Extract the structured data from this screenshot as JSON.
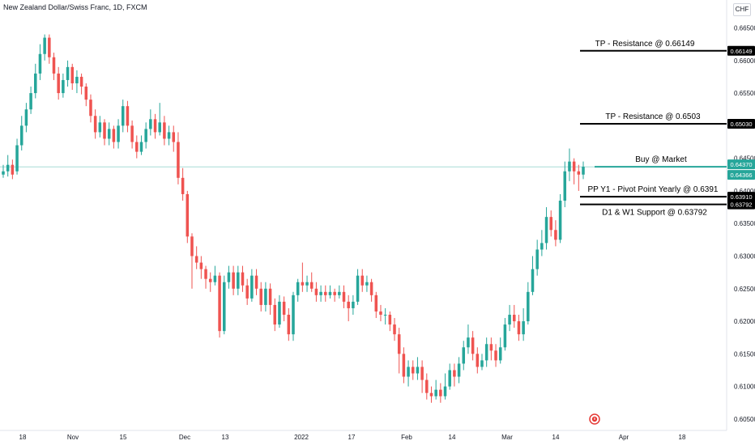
{
  "header": {
    "title": "New Zealand Dollar/Swiss Franc, 1D, FXCM",
    "currency_button": "CHF"
  },
  "colors": {
    "up": "#26a69a",
    "down": "#ef5350",
    "last_price": "#26a69a",
    "level": "#000000",
    "buy_line": "#26a69a",
    "alarm": "#e53935"
  },
  "icons": {
    "alarm": "alarm-clock-icon"
  },
  "chart_data": {
    "type": "candlestick",
    "title": "New Zealand Dollar/Swiss Franc, 1D, FXCM",
    "y_ticks": [
      0.605,
      0.61,
      0.615,
      0.62,
      0.625,
      0.63,
      0.635,
      0.64,
      0.645,
      0.65,
      0.655,
      0.66,
      0.665
    ],
    "ylim": [
      0.6035,
      0.6668
    ],
    "x_labels": [
      "18",
      "Nov",
      "15",
      "Dec",
      "13",
      "2022",
      "17",
      "Feb",
      "14",
      "Mar",
      "14",
      "Apr",
      "18"
    ],
    "levels": [
      {
        "name": "TP - Resistance @ 0.66149",
        "value": 0.66149,
        "badge": "0.66149"
      },
      {
        "name": "TP - Resistance @ 0.6503",
        "value": 0.6503,
        "badge": "0.65030"
      },
      {
        "name": "Buy @ Market",
        "value": 0.6437,
        "badge": "0.64370"
      },
      {
        "name": "PP Y1 - Pivot Point Yearly @ 0.6391",
        "value": 0.6391,
        "badge": "0.63910"
      },
      {
        "name": "D1 & W1 Support @ 0.63792",
        "value": 0.63792,
        "badge": "0.63792"
      }
    ],
    "last_price": {
      "value": 0.6437,
      "badge_top": "0.64370",
      "badge_bottom": "0.64366"
    },
    "candles": [
      [
        0.6425,
        0.643,
        0.644,
        0.642
      ],
      [
        0.643,
        0.644,
        0.6455,
        0.6422
      ],
      [
        0.644,
        0.6425,
        0.6448,
        0.6418
      ],
      [
        0.643,
        0.647,
        0.648,
        0.6425
      ],
      [
        0.647,
        0.65,
        0.6515,
        0.6462
      ],
      [
        0.65,
        0.6525,
        0.6535,
        0.649
      ],
      [
        0.6525,
        0.655,
        0.656,
        0.6518
      ],
      [
        0.655,
        0.658,
        0.6595,
        0.6542
      ],
      [
        0.658,
        0.661,
        0.6625,
        0.657
      ],
      [
        0.661,
        0.6635,
        0.664,
        0.66
      ],
      [
        0.6635,
        0.6605,
        0.664,
        0.6595
      ],
      [
        0.6605,
        0.658,
        0.6612,
        0.657
      ],
      [
        0.658,
        0.655,
        0.659,
        0.654
      ],
      [
        0.655,
        0.657,
        0.658,
        0.6543
      ],
      [
        0.657,
        0.659,
        0.66,
        0.656
      ],
      [
        0.659,
        0.6565,
        0.6595,
        0.6555
      ],
      [
        0.6565,
        0.6575,
        0.6585,
        0.655
      ],
      [
        0.6575,
        0.656,
        0.658,
        0.6548
      ],
      [
        0.656,
        0.654,
        0.6565,
        0.653
      ],
      [
        0.654,
        0.6515,
        0.6548,
        0.6505
      ],
      [
        0.6515,
        0.649,
        0.6525,
        0.648
      ],
      [
        0.649,
        0.6505,
        0.6515,
        0.6482
      ],
      [
        0.6505,
        0.648,
        0.651,
        0.647
      ],
      [
        0.648,
        0.6495,
        0.6505,
        0.647
      ],
      [
        0.6495,
        0.6475,
        0.65,
        0.6465
      ],
      [
        0.6475,
        0.65,
        0.651,
        0.6465
      ],
      [
        0.65,
        0.653,
        0.654,
        0.649
      ],
      [
        0.653,
        0.65,
        0.6538,
        0.649
      ],
      [
        0.65,
        0.6475,
        0.6508,
        0.6465
      ],
      [
        0.6475,
        0.646,
        0.6485,
        0.645
      ],
      [
        0.646,
        0.6475,
        0.6485,
        0.6455
      ],
      [
        0.6475,
        0.6495,
        0.6505,
        0.6465
      ],
      [
        0.6495,
        0.651,
        0.6525,
        0.6485
      ],
      [
        0.651,
        0.649,
        0.6518,
        0.648
      ],
      [
        0.649,
        0.6505,
        0.6535,
        0.6485
      ],
      [
        0.6505,
        0.648,
        0.6515,
        0.647
      ],
      [
        0.648,
        0.649,
        0.65,
        0.647
      ],
      [
        0.649,
        0.6475,
        0.65,
        0.646
      ],
      [
        0.6475,
        0.642,
        0.649,
        0.641
      ],
      [
        0.642,
        0.6395,
        0.6435,
        0.6385
      ],
      [
        0.6395,
        0.633,
        0.64,
        0.632
      ],
      [
        0.633,
        0.63,
        0.6335,
        0.625
      ],
      [
        0.63,
        0.629,
        0.6315,
        0.628
      ],
      [
        0.629,
        0.628,
        0.63,
        0.6265
      ],
      [
        0.628,
        0.6265,
        0.6285,
        0.625
      ],
      [
        0.6265,
        0.626,
        0.6275,
        0.6245
      ],
      [
        0.626,
        0.627,
        0.6285,
        0.6255
      ],
      [
        0.627,
        0.6185,
        0.6275,
        0.6175
      ],
      [
        0.6185,
        0.626,
        0.627,
        0.618
      ],
      [
        0.626,
        0.6275,
        0.6285,
        0.625
      ],
      [
        0.6275,
        0.625,
        0.6285,
        0.624
      ],
      [
        0.625,
        0.6275,
        0.6285,
        0.624
      ],
      [
        0.6275,
        0.6255,
        0.6285,
        0.6245
      ],
      [
        0.6255,
        0.6235,
        0.6265,
        0.6225
      ],
      [
        0.6235,
        0.627,
        0.628,
        0.623
      ],
      [
        0.627,
        0.625,
        0.628,
        0.624
      ],
      [
        0.625,
        0.6225,
        0.626,
        0.6215
      ],
      [
        0.6225,
        0.625,
        0.626,
        0.6215
      ],
      [
        0.625,
        0.6225,
        0.6258,
        0.621
      ],
      [
        0.6225,
        0.6195,
        0.6235,
        0.6185
      ],
      [
        0.6195,
        0.623,
        0.624,
        0.619
      ],
      [
        0.623,
        0.621,
        0.6238,
        0.62
      ],
      [
        0.621,
        0.618,
        0.622,
        0.617
      ],
      [
        0.618,
        0.624,
        0.6245,
        0.617
      ],
      [
        0.624,
        0.626,
        0.6265,
        0.623
      ],
      [
        0.626,
        0.6255,
        0.629,
        0.6245
      ],
      [
        0.6255,
        0.626,
        0.627,
        0.6245
      ],
      [
        0.626,
        0.625,
        0.6275,
        0.6245
      ],
      [
        0.625,
        0.624,
        0.626,
        0.623
      ],
      [
        0.624,
        0.6245,
        0.6255,
        0.623
      ],
      [
        0.6245,
        0.624,
        0.6255,
        0.623
      ],
      [
        0.624,
        0.6245,
        0.6255,
        0.6235
      ],
      [
        0.6245,
        0.624,
        0.625,
        0.623
      ],
      [
        0.624,
        0.6245,
        0.6255,
        0.6235
      ],
      [
        0.6245,
        0.623,
        0.6255,
        0.622
      ],
      [
        0.623,
        0.622,
        0.624,
        0.62
      ],
      [
        0.622,
        0.623,
        0.624,
        0.621
      ],
      [
        0.623,
        0.627,
        0.628,
        0.6225
      ],
      [
        0.627,
        0.6255,
        0.628,
        0.6245
      ],
      [
        0.6255,
        0.626,
        0.627,
        0.6245
      ],
      [
        0.626,
        0.624,
        0.6265,
        0.623
      ],
      [
        0.624,
        0.6215,
        0.6245,
        0.6205
      ],
      [
        0.6215,
        0.621,
        0.6225,
        0.62
      ],
      [
        0.621,
        0.621,
        0.622,
        0.6195
      ],
      [
        0.621,
        0.6195,
        0.6215,
        0.6185
      ],
      [
        0.6195,
        0.618,
        0.6205,
        0.617
      ],
      [
        0.618,
        0.615,
        0.619,
        0.612
      ],
      [
        0.615,
        0.6115,
        0.616,
        0.6105
      ],
      [
        0.6115,
        0.613,
        0.614,
        0.61
      ],
      [
        0.613,
        0.612,
        0.614,
        0.611
      ],
      [
        0.612,
        0.613,
        0.6145,
        0.611
      ],
      [
        0.613,
        0.611,
        0.614,
        0.609
      ],
      [
        0.611,
        0.609,
        0.612,
        0.608
      ],
      [
        0.609,
        0.6085,
        0.61,
        0.6075
      ],
      [
        0.6085,
        0.6095,
        0.611,
        0.608
      ],
      [
        0.6095,
        0.6085,
        0.6105,
        0.6075
      ],
      [
        0.6085,
        0.61,
        0.612,
        0.608
      ],
      [
        0.61,
        0.6125,
        0.6135,
        0.6095
      ],
      [
        0.6125,
        0.6115,
        0.6135,
        0.61
      ],
      [
        0.6115,
        0.6135,
        0.6145,
        0.6105
      ],
      [
        0.6135,
        0.616,
        0.617,
        0.6125
      ],
      [
        0.616,
        0.6175,
        0.6195,
        0.615
      ],
      [
        0.6175,
        0.615,
        0.6185,
        0.614
      ],
      [
        0.615,
        0.613,
        0.616,
        0.612
      ],
      [
        0.613,
        0.614,
        0.615,
        0.6125
      ],
      [
        0.614,
        0.6165,
        0.6175,
        0.613
      ],
      [
        0.6165,
        0.6155,
        0.6175,
        0.614
      ],
      [
        0.6155,
        0.614,
        0.6165,
        0.613
      ],
      [
        0.614,
        0.616,
        0.6175,
        0.6135
      ],
      [
        0.616,
        0.6195,
        0.6205,
        0.6155
      ],
      [
        0.6195,
        0.621,
        0.6225,
        0.6185
      ],
      [
        0.621,
        0.62,
        0.6225,
        0.619
      ],
      [
        0.62,
        0.618,
        0.621,
        0.617
      ],
      [
        0.618,
        0.62,
        0.622,
        0.617
      ],
      [
        0.62,
        0.6245,
        0.626,
        0.6195
      ],
      [
        0.6245,
        0.628,
        0.63,
        0.624
      ],
      [
        0.628,
        0.631,
        0.6325,
        0.627
      ],
      [
        0.631,
        0.632,
        0.634,
        0.63
      ],
      [
        0.632,
        0.636,
        0.6375,
        0.631
      ],
      [
        0.636,
        0.634,
        0.637,
        0.633
      ],
      [
        0.634,
        0.6325,
        0.6355,
        0.6315
      ],
      [
        0.6325,
        0.6385,
        0.6395,
        0.632
      ],
      [
        0.6385,
        0.643,
        0.6445,
        0.6375
      ],
      [
        0.643,
        0.6445,
        0.6465,
        0.6415
      ],
      [
        0.6445,
        0.643,
        0.645,
        0.641
      ],
      [
        0.643,
        0.6425,
        0.644,
        0.64
      ],
      [
        0.6425,
        0.6437,
        0.6445,
        0.6418
      ]
    ]
  }
}
